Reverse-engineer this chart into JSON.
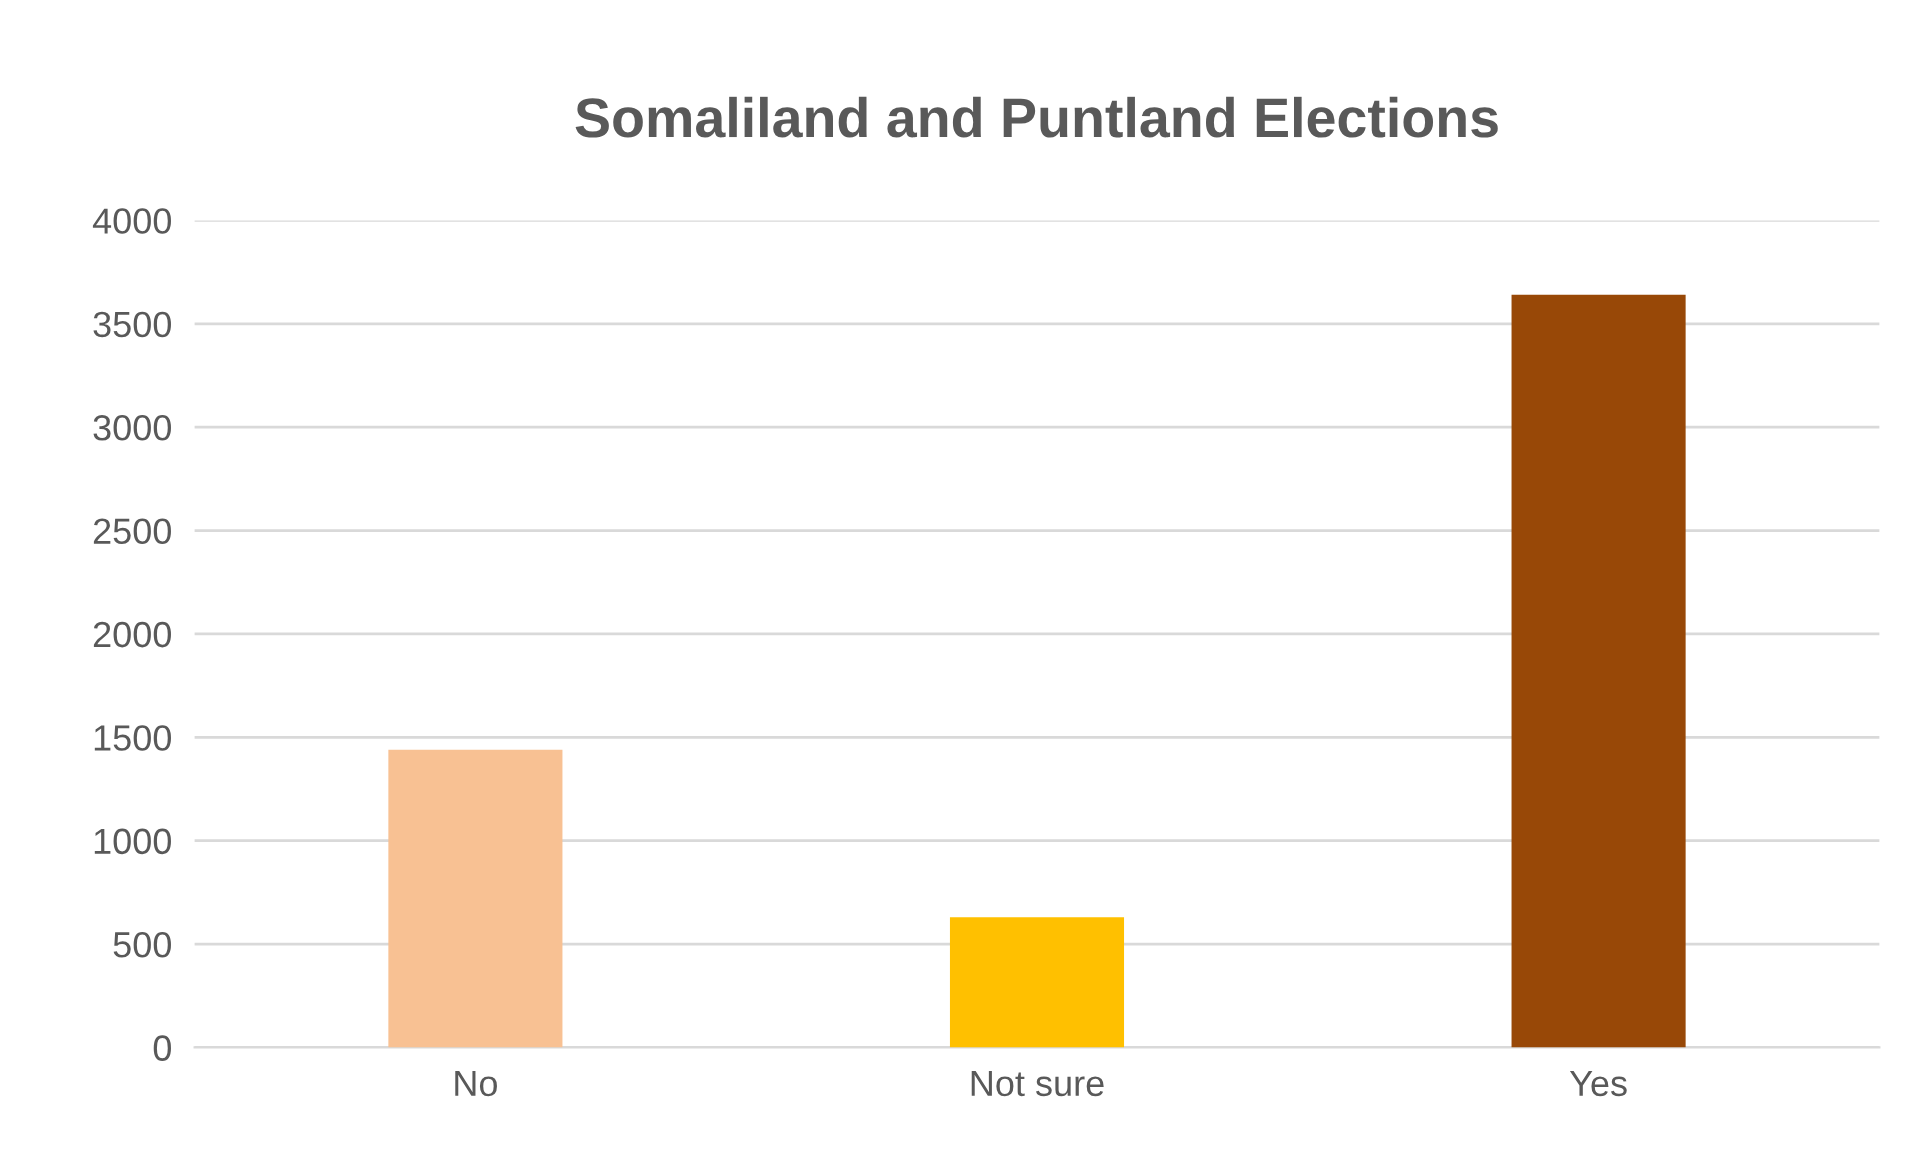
{
  "chart_data": {
    "type": "bar",
    "title": "Somaliland and Puntland Elections",
    "categories": [
      "No",
      "Not sure",
      "Yes"
    ],
    "values": [
      1440,
      630,
      3640
    ],
    "colors": [
      "#f8c193",
      "#ffc000",
      "#984807"
    ],
    "ylim": [
      0,
      4000
    ],
    "yticks": [
      0,
      500,
      1000,
      1500,
      2000,
      2500,
      3000,
      3500,
      4000
    ],
    "grid": "y",
    "legend": false
  }
}
